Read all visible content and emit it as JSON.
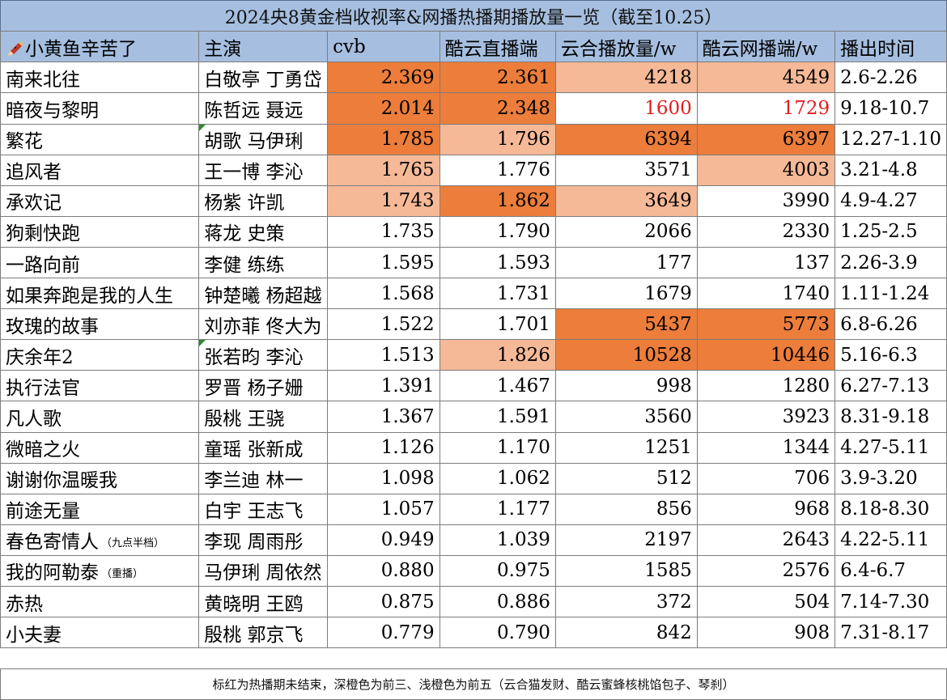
{
  "title": "2024央8黄金档收视率&网播热播期播放量一览（截至10.25）",
  "header": {
    "author": "小黄鱼辛苦了",
    "cast": "主演",
    "cvb": "cvb",
    "kuyun_live": "酷云直播端",
    "yunhe": "云合播放量/w",
    "kuyun_web": "酷云网播端/w",
    "period": "播出时间"
  },
  "rows": [
    {
      "drama": "南来北往",
      "note": "",
      "cast": "白敬亭 丁勇岱",
      "cvb": "2.369",
      "live": "2.361",
      "yunhe": "4218",
      "web": "4549",
      "period": "2.6-2.26",
      "cvb_hl": "dark",
      "live_hl": "dark",
      "yunhe_hl": "light",
      "web_hl": "light",
      "red": false,
      "marker": false
    },
    {
      "drama": "暗夜与黎明",
      "note": "",
      "cast": "陈哲远 聂远",
      "cvb": "2.014",
      "live": "2.348",
      "yunhe": "1600",
      "web": "1729",
      "period": "9.18-10.7",
      "cvb_hl": "dark",
      "live_hl": "dark",
      "yunhe_hl": "",
      "web_hl": "",
      "red": true,
      "marker": false
    },
    {
      "drama": "繁花",
      "note": "",
      "cast": "胡歌 马伊琍",
      "cvb": "1.785",
      "live": "1.796",
      "yunhe": "6394",
      "web": "6397",
      "period": "12.27-1.10",
      "cvb_hl": "dark",
      "live_hl": "light",
      "yunhe_hl": "dark",
      "web_hl": "dark",
      "red": false,
      "marker": true
    },
    {
      "drama": "追风者",
      "note": "",
      "cast": "王一博 李沁",
      "cvb": "1.765",
      "live": "1.776",
      "yunhe": "3571",
      "web": "4003",
      "period": "3.21-4.8",
      "cvb_hl": "light",
      "live_hl": "",
      "yunhe_hl": "",
      "web_hl": "light",
      "red": false,
      "marker": false
    },
    {
      "drama": "承欢记",
      "note": "",
      "cast": "杨紫 许凯",
      "cvb": "1.743",
      "live": "1.862",
      "yunhe": "3649",
      "web": "3990",
      "period": "4.9-4.27",
      "cvb_hl": "light",
      "live_hl": "dark",
      "yunhe_hl": "light",
      "web_hl": "",
      "red": false,
      "marker": false
    },
    {
      "drama": "狗剩快跑",
      "note": "",
      "cast": "蒋龙 史策",
      "cvb": "1.735",
      "live": "1.790",
      "yunhe": "2066",
      "web": "2330",
      "period": "1.25-2.5",
      "cvb_hl": "",
      "live_hl": "",
      "yunhe_hl": "",
      "web_hl": "",
      "red": false,
      "marker": false
    },
    {
      "drama": "一路向前",
      "note": "",
      "cast": "李健 练练",
      "cvb": "1.595",
      "live": "1.593",
      "yunhe": "177",
      "web": "137",
      "period": "2.26-3.9",
      "cvb_hl": "",
      "live_hl": "",
      "yunhe_hl": "",
      "web_hl": "",
      "red": false,
      "marker": false
    },
    {
      "drama": "如果奔跑是我的人生",
      "note": "",
      "cast": "钟楚曦 杨超越",
      "cvb": "1.568",
      "live": "1.731",
      "yunhe": "1679",
      "web": "1740",
      "period": "1.11-1.24",
      "cvb_hl": "",
      "live_hl": "",
      "yunhe_hl": "",
      "web_hl": "",
      "red": false,
      "marker": false
    },
    {
      "drama": "玫瑰的故事",
      "note": "",
      "cast": "刘亦菲 佟大为",
      "cvb": "1.522",
      "live": "1.701",
      "yunhe": "5437",
      "web": "5773",
      "period": "6.8-6.26",
      "cvb_hl": "",
      "live_hl": "",
      "yunhe_hl": "dark",
      "web_hl": "dark",
      "red": false,
      "marker": false
    },
    {
      "drama": "庆余年2",
      "note": "",
      "cast": "张若昀 李沁",
      "cvb": "1.513",
      "live": "1.826",
      "yunhe": "10528",
      "web": "10446",
      "period": "5.16-6.3",
      "cvb_hl": "",
      "live_hl": "light",
      "yunhe_hl": "dark",
      "web_hl": "dark",
      "red": false,
      "marker": true
    },
    {
      "drama": "执行法官",
      "note": "",
      "cast": "罗晋 杨子姗",
      "cvb": "1.391",
      "live": "1.467",
      "yunhe": "998",
      "web": "1280",
      "period": "6.27-7.13",
      "cvb_hl": "",
      "live_hl": "",
      "yunhe_hl": "",
      "web_hl": "",
      "red": false,
      "marker": false
    },
    {
      "drama": "凡人歌",
      "note": "",
      "cast": "殷桃 王骁",
      "cvb": "1.367",
      "live": "1.591",
      "yunhe": "3560",
      "web": "3923",
      "period": "8.31-9.18",
      "cvb_hl": "",
      "live_hl": "",
      "yunhe_hl": "",
      "web_hl": "",
      "red": false,
      "marker": false
    },
    {
      "drama": "微暗之火",
      "note": "",
      "cast": "童瑶 张新成",
      "cvb": "1.126",
      "live": "1.170",
      "yunhe": "1251",
      "web": "1344",
      "period": "4.27-5.11",
      "cvb_hl": "",
      "live_hl": "",
      "yunhe_hl": "",
      "web_hl": "",
      "red": false,
      "marker": false
    },
    {
      "drama": "谢谢你温暖我",
      "note": "",
      "cast": "李兰迪 林一",
      "cvb": "1.098",
      "live": "1.062",
      "yunhe": "512",
      "web": "706",
      "period": "3.9-3.20",
      "cvb_hl": "",
      "live_hl": "",
      "yunhe_hl": "",
      "web_hl": "",
      "red": false,
      "marker": false
    },
    {
      "drama": "前途无量",
      "note": "",
      "cast": "白宇 王志飞",
      "cvb": "1.057",
      "live": "1.177",
      "yunhe": "856",
      "web": "968",
      "period": "8.18-8.30",
      "cvb_hl": "",
      "live_hl": "",
      "yunhe_hl": "",
      "web_hl": "",
      "red": false,
      "marker": false
    },
    {
      "drama": "春色寄情人",
      "note": "（九点半档）",
      "cast": "李现 周雨彤",
      "cvb": "0.949",
      "live": "1.039",
      "yunhe": "2197",
      "web": "2643",
      "period": "4.22-5.11",
      "cvb_hl": "",
      "live_hl": "",
      "yunhe_hl": "",
      "web_hl": "",
      "red": false,
      "marker": false
    },
    {
      "drama": "我的阿勒泰",
      "note": "（重播）",
      "cast": "马伊琍 周依然",
      "cvb": "0.880",
      "live": "0.975",
      "yunhe": "1585",
      "web": "2576",
      "period": "6.4-6.7",
      "cvb_hl": "",
      "live_hl": "",
      "yunhe_hl": "",
      "web_hl": "",
      "red": false,
      "marker": false
    },
    {
      "drama": "赤热",
      "note": "",
      "cast": "黄晓明 王鸥",
      "cvb": "0.875",
      "live": "0.886",
      "yunhe": "372",
      "web": "504",
      "period": "7.14-7.30",
      "cvb_hl": "",
      "live_hl": "",
      "yunhe_hl": "",
      "web_hl": "",
      "red": false,
      "marker": false
    },
    {
      "drama": "小夫妻",
      "note": "",
      "cast": "殷桃 郭京飞",
      "cvb": "0.779",
      "live": "0.790",
      "yunhe": "842",
      "web": "908",
      "period": "7.31-8.17",
      "cvb_hl": "",
      "live_hl": "",
      "yunhe_hl": "",
      "web_hl": "",
      "red": false,
      "marker": false
    }
  ],
  "footer": "标红为热播期未结束，深橙色为前三、浅橙色为前五（云合猫发财、酷云蜜蜂核桃馅包子、琴刹）",
  "colors": {
    "header_bg": "#a6bfe0",
    "dark_orange": "#ec7d3b",
    "light_orange": "#f6b997",
    "red_text": "#e02020"
  },
  "icons": {
    "author": "pencil-fish-icon"
  }
}
